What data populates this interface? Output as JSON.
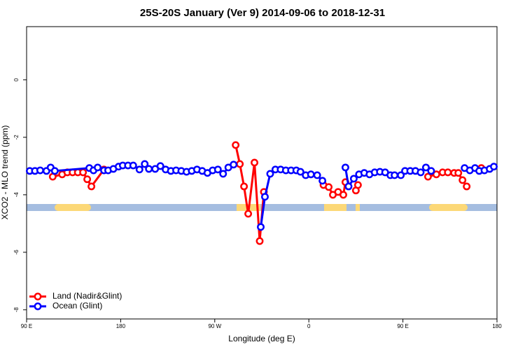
{
  "chart_data": {
    "type": "line",
    "title": "25S-20S January (Ver 9)   2014-09-06 to 2018-12-31",
    "x_label": "Longitude (deg E)",
    "y_label": "XCO2 - MLO trend (ppm)",
    "xlim": [
      90,
      540
    ],
    "xticks": [
      {
        "value": 90,
        "label": "90 E"
      },
      {
        "value": 180,
        "label": "180"
      },
      {
        "value": 270,
        "label": "90 W"
      },
      {
        "value": 360,
        "label": "0"
      },
      {
        "value": 450,
        "label": "90 E"
      },
      {
        "value": 540,
        "label": "180"
      }
    ],
    "ylim": [
      -8.32,
      1.85
    ],
    "yticks": [
      -8,
      -6,
      -4,
      -2,
      0
    ],
    "legend": "bottom-left",
    "series": [
      {
        "name": "Land (Nadir&Glint)",
        "color": "#ff0000",
        "x": [
          115,
          124,
          129,
          134,
          139,
          144,
          148,
          152,
          164,
          null,
          290,
          294,
          298,
          302,
          308,
          313,
          317,
          null,
          374,
          379,
          383,
          388,
          393,
          395,
          null,
          405,
          407,
          null,
          474,
          482,
          488,
          493,
          499,
          503,
          507,
          511,
          null,
          525
        ],
        "values": [
          -3.37,
          -3.29,
          -3.22,
          -3.22,
          -3.22,
          -3.22,
          -3.46,
          -3.71,
          -3.12,
          null,
          -2.27,
          -2.93,
          -3.71,
          -4.66,
          -2.88,
          -5.61,
          -3.9,
          null,
          -3.66,
          -3.73,
          -4.0,
          -3.9,
          -4.0,
          -3.56,
          null,
          -3.85,
          -3.66,
          null,
          -3.37,
          -3.29,
          -3.22,
          -3.22,
          -3.24,
          -3.24,
          -3.49,
          -3.71,
          null,
          -3.07
        ]
      },
      {
        "name": "Ocean (Glint)",
        "color": "#0000ff",
        "x": [
          93,
          98,
          103,
          109,
          113,
          117,
          150,
          154,
          158,
          164,
          168,
          173,
          178,
          182,
          187,
          192,
          198,
          203,
          207,
          213,
          218,
          223,
          228,
          233,
          238,
          243,
          248,
          253,
          258,
          263,
          268,
          273,
          278,
          283,
          288,
          null,
          314,
          318,
          323,
          328,
          333,
          338,
          343,
          348,
          352,
          357,
          362,
          368,
          373,
          null,
          395,
          398,
          403,
          408,
          413,
          418,
          423,
          428,
          433,
          438,
          442,
          448,
          452,
          457,
          462,
          467,
          472,
          477,
          null,
          509,
          514,
          519,
          523,
          528,
          533,
          537
        ],
        "values": [
          -3.17,
          -3.17,
          -3.15,
          -3.17,
          -3.05,
          -3.17,
          -3.07,
          -3.15,
          -3.05,
          -3.15,
          -3.15,
          -3.1,
          -3.02,
          -2.98,
          -2.98,
          -2.98,
          -3.12,
          -2.93,
          -3.1,
          -3.1,
          -3.0,
          -3.12,
          -3.17,
          -3.15,
          -3.17,
          -3.2,
          -3.17,
          -3.12,
          -3.17,
          -3.24,
          -3.15,
          -3.12,
          -3.27,
          -3.05,
          -2.95,
          null,
          -5.12,
          -4.07,
          -3.27,
          -3.12,
          -3.12,
          -3.15,
          -3.15,
          -3.15,
          -3.2,
          -3.32,
          -3.29,
          -3.32,
          -3.51,
          null,
          -3.05,
          -3.71,
          -3.44,
          -3.29,
          -3.24,
          -3.29,
          -3.22,
          -3.2,
          -3.22,
          -3.32,
          -3.32,
          -3.32,
          -3.17,
          -3.17,
          -3.17,
          -3.22,
          -3.05,
          -3.17,
          null,
          -3.07,
          -3.15,
          -3.07,
          -3.17,
          -3.15,
          -3.1,
          -3.02
        ]
      }
    ]
  }
}
